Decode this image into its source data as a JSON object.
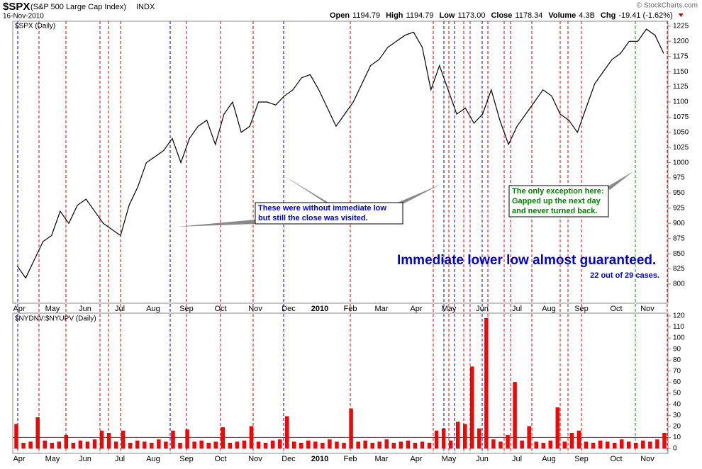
{
  "header": {
    "symbol": "$SPX",
    "name": "(S&P 500 Large Cap Index)",
    "exchange": "INDX",
    "date": "16-Nov-2010",
    "copyright": "© StockCharts.com",
    "quote": [
      [
        "Open",
        "1194.79"
      ],
      [
        "High",
        "1194.79"
      ],
      [
        "Low",
        "1173.00"
      ],
      [
        "Close",
        "1178.34"
      ],
      [
        "Volume",
        "4.3B"
      ],
      [
        "Chg",
        "-19.41 (-1.62%)"
      ]
    ]
  },
  "months": [
    "Apr",
    "May",
    "Jun",
    "Jul",
    "Aug",
    "Sep",
    "Oct",
    "Nov",
    "Dec",
    "2010",
    "Feb",
    "Mar",
    "Apr",
    "May",
    "Jun",
    "Jul",
    "Aug",
    "Sep",
    "Oct",
    "Nov"
  ],
  "chart_data": [
    {
      "type": "line",
      "title": "$SPX (Daily)",
      "color": "#000000",
      "ylim": [
        768.5,
        1233
      ],
      "yticks": [
        800,
        825,
        850,
        875,
        900,
        925,
        950,
        975,
        1000,
        1025,
        1050,
        1075,
        1100,
        1125,
        1150,
        1175,
        1200,
        1225
      ],
      "values": [
        830,
        810,
        840,
        870,
        880,
        920,
        900,
        930,
        940,
        920,
        900,
        890,
        880,
        930,
        960,
        1000,
        1010,
        1020,
        1040,
        1000,
        1040,
        1060,
        1070,
        1030,
        1080,
        1100,
        1050,
        1060,
        1100,
        1100,
        1095,
        1110,
        1120,
        1140,
        1145,
        1120,
        1090,
        1060,
        1080,
        1100,
        1130,
        1160,
        1170,
        1190,
        1200,
        1210,
        1215,
        1190,
        1120,
        1160,
        1120,
        1080,
        1090,
        1065,
        1080,
        1120,
        1070,
        1030,
        1060,
        1080,
        1100,
        1120,
        1110,
        1080,
        1070,
        1050,
        1090,
        1130,
        1150,
        1170,
        1180,
        1200,
        1200,
        1220,
        1210,
        1180
      ],
      "annotations": {
        "box1": [
          "These were without immediate low",
          "but still the close was visited."
        ],
        "box2": [
          "The only exception here:",
          "Gapped up the next day",
          "and never turned back."
        ],
        "headline": "Immediate lower low almost guaranteed.",
        "note": "22 out of 29 cases."
      }
    },
    {
      "type": "bar",
      "title": "$NYDNV:$NYUPV (Daily)",
      "color": "#ff0000",
      "ylim": [
        -4.5,
        122.5
      ],
      "threshold": 10,
      "yticks": [
        0,
        10,
        20,
        30,
        40,
        50,
        60,
        70,
        80,
        90,
        100,
        110,
        120
      ],
      "values": [
        22,
        5,
        6,
        28,
        7,
        5,
        6,
        12,
        5,
        7,
        6,
        8,
        16,
        14,
        6,
        16,
        5,
        7,
        6,
        5,
        8,
        6,
        16,
        5,
        17,
        6,
        7,
        5,
        6,
        19,
        5,
        6,
        7,
        20,
        6,
        5,
        7,
        8,
        29,
        6,
        5,
        7,
        6,
        5,
        8,
        6,
        5,
        36,
        6,
        7,
        5,
        6,
        8,
        5,
        6,
        7,
        5,
        6,
        5,
        16,
        18,
        7,
        24,
        22,
        74,
        18,
        118,
        8,
        6,
        12,
        60,
        7,
        20,
        6,
        5,
        7,
        37,
        6,
        14,
        16,
        6,
        5,
        7,
        6,
        5,
        8,
        6,
        5,
        7,
        6,
        8,
        14
      ]
    }
  ]
}
